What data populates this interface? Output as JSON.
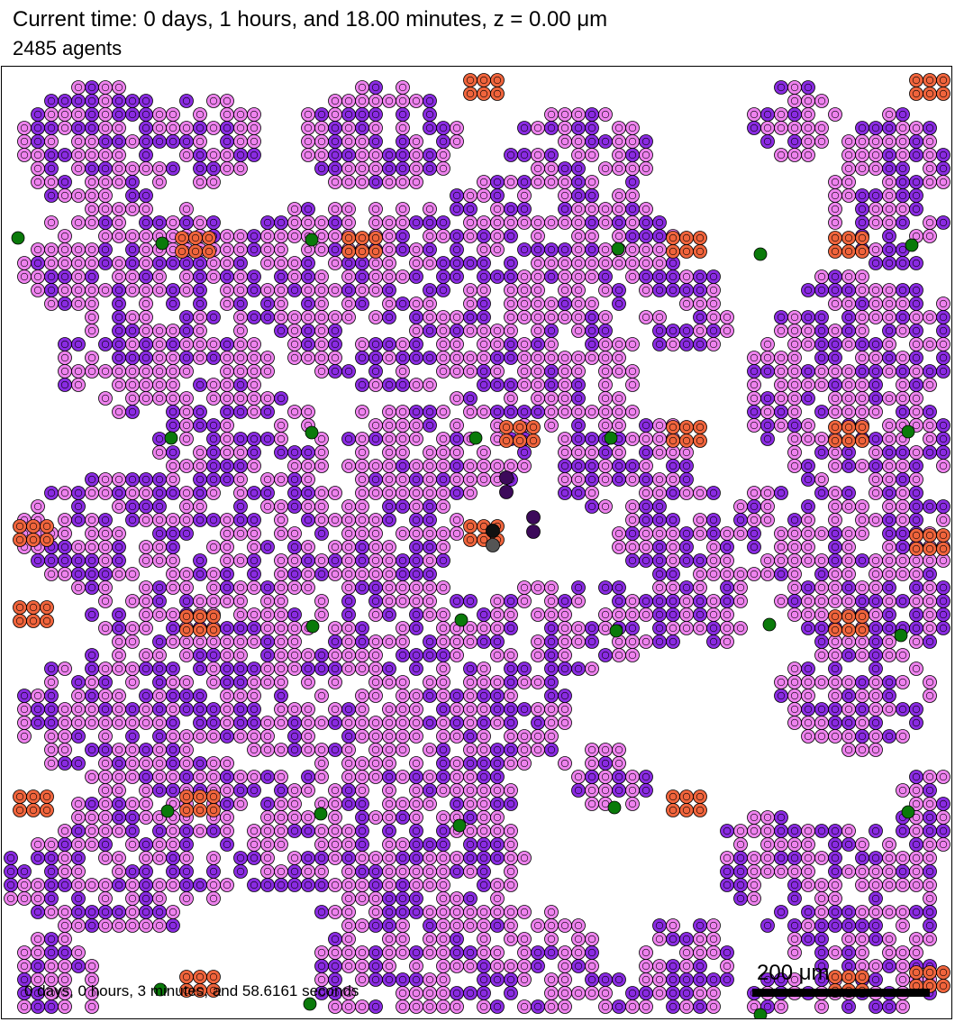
{
  "header": {
    "time_text": "Current time: 0 days, 1 hours, and 18.00 minutes, z = 0.00 μm",
    "agent_count_text": "2485 agents"
  },
  "footer": {
    "elapsed_text": "0 days, 0 hours, 3 minutes, and 58.6161 seconds",
    "scale_label": "200 μm"
  },
  "colors": {
    "background": "#ffffff",
    "type_a_fill": "#ee82ee",
    "type_b_fill": "#8a2be2",
    "type_c_fill": "#f0643c",
    "type_d_fill": "#0a7a0a",
    "dead_cell": "#111111",
    "dark_purple": "#3c0a5a",
    "outline": "#000000"
  }
}
